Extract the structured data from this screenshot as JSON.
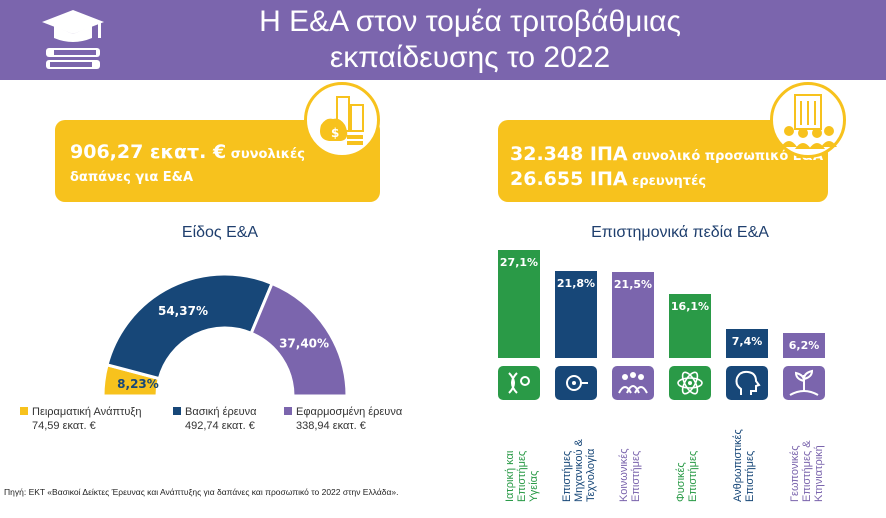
{
  "header": {
    "title_line1": "Η Ε&Α στον τομέα τριτοβάθμιας",
    "title_line2": "εκπαίδευσης το 2022"
  },
  "left_stat": {
    "amount": "906,27 εκατ. €",
    "line1_rest": " συνολικές",
    "line2": "δαπάνες για Ε&Α"
  },
  "right_stat": {
    "line1_big": "32.348 ΙΠΑ",
    "line1_rest": " συνολικό προσωπικό Ε&Α",
    "line2_big": "26.655 ΙΠΑ",
    "line2_rest": " ερευνητές"
  },
  "colors": {
    "purple": "#7b65ad",
    "yellow": "#f7c21d",
    "navy": "#174778",
    "green": "#2a9a47"
  },
  "icons": {
    "header": "graduation-cap-books-icon",
    "money": "money-bag-buildings-icon",
    "people": "building-people-icon"
  },
  "chart_data": [
    {
      "type": "pie",
      "title": "Είδος Ε&Α",
      "slices": [
        {
          "name": "Πειραματική Ανάπτυξη",
          "value_label": "74,59 εκατ. €",
          "value": 74.59,
          "percent": 8.23,
          "percent_label": "8,23%",
          "color": "#f7c21d"
        },
        {
          "name": "Βασική έρευνα",
          "value_label": "492,74 εκατ. €",
          "value": 492.74,
          "percent": 54.37,
          "percent_label": "54,37%",
          "color": "#174778"
        },
        {
          "name": "Εφαρμοσμένη έρευνα",
          "value_label": "338,94 εκατ. €",
          "value": 338.94,
          "percent": 37.4,
          "percent_label": "37,40%",
          "color": "#7b65ad"
        }
      ]
    },
    {
      "type": "bar",
      "title": "Επιστημονικά πεδία Ε&Α",
      "categories": [
        "Ιατρική και\nΕπιστήμες\nΥγείας",
        "Επιστήμες\nΜηχανικού &\nΤεχνολογία",
        "Κοινωνικές\nΕπιστήμες",
        "Φυσικές\nΕπιστήμες",
        "Ανθρωπιστικές\nΕπιστήμες",
        "Γεωπονικές\nΕπιστήμες &\nΚτηνιατρική"
      ],
      "values": [
        27.1,
        21.8,
        21.5,
        16.1,
        7.4,
        6.2
      ],
      "value_labels": [
        "27,1%",
        "21,8%",
        "21,5%",
        "16,1%",
        "7,4%",
        "6,2%"
      ],
      "colors": [
        "#2a9a47",
        "#174778",
        "#7b65ad",
        "#2a9a47",
        "#174778",
        "#7b65ad"
      ],
      "icons": [
        "dna-microscope-icon",
        "gear-circuit-icon",
        "people-group-icon",
        "atom-icon",
        "head-profile-icon",
        "plant-field-icon"
      ]
    }
  ],
  "source": "Πηγή: ΕΚΤ «Βασικοί Δείκτες Έρευνας και Ανάπτυξης για δαπάνες και προσωπικό το 2022 στην Ελλάδα»."
}
